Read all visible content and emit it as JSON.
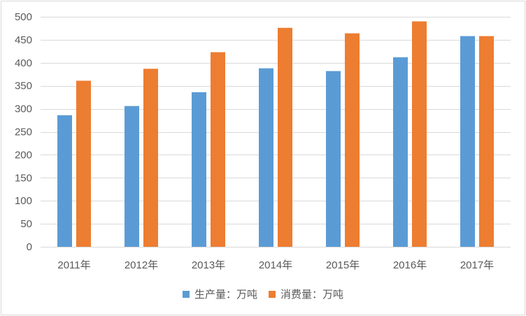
{
  "chart_data": {
    "type": "bar",
    "title": "",
    "xlabel": "",
    "ylabel": "",
    "categories": [
      "2011年",
      "2012年",
      "2013年",
      "2014年",
      "2015年",
      "2016年",
      "2017年"
    ],
    "series": [
      {
        "name": "生产量：万吨",
        "color": "#5b9bd5",
        "values": [
          286,
          306,
          336,
          388,
          382,
          412,
          458
        ]
      },
      {
        "name": "消费量：万吨",
        "color": "#ed7d31",
        "values": [
          361,
          387,
          423,
          476,
          464,
          490,
          458
        ]
      }
    ],
    "ylim": [
      0,
      500
    ],
    "yticks": [
      0,
      50,
      100,
      150,
      200,
      250,
      300,
      350,
      400,
      450,
      500
    ],
    "grid": true,
    "legend_position": "bottom"
  }
}
